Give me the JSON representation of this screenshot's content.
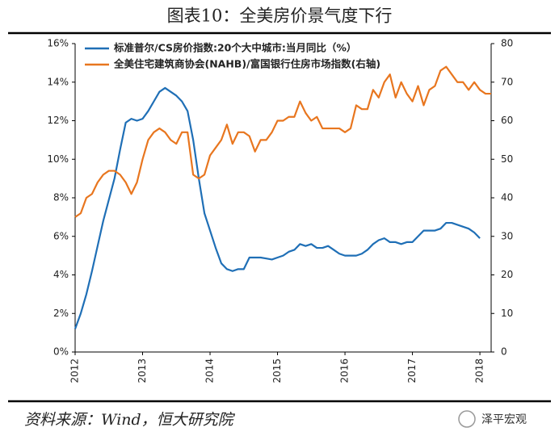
{
  "chart_data": {
    "type": "line",
    "title": "图表10：全美房价景气度下行",
    "source": "资料来源：Wind，恒大研究院",
    "watermark": "泽平宏观",
    "x": [
      "2012-01",
      "2012-02",
      "2012-03",
      "2012-04",
      "2012-05",
      "2012-06",
      "2012-07",
      "2012-08",
      "2012-09",
      "2012-10",
      "2012-11",
      "2012-12",
      "2013-01",
      "2013-02",
      "2013-03",
      "2013-04",
      "2013-05",
      "2013-06",
      "2013-07",
      "2013-08",
      "2013-09",
      "2013-10",
      "2013-11",
      "2013-12",
      "2014-01",
      "2014-02",
      "2014-03",
      "2014-04",
      "2014-05",
      "2014-06",
      "2014-07",
      "2014-08",
      "2014-09",
      "2014-10",
      "2014-11",
      "2014-12",
      "2015-01",
      "2015-02",
      "2015-03",
      "2015-04",
      "2015-05",
      "2015-06",
      "2015-07",
      "2015-08",
      "2015-09",
      "2015-10",
      "2015-11",
      "2015-12",
      "2016-01",
      "2016-02",
      "2016-03",
      "2016-04",
      "2016-05",
      "2016-06",
      "2016-07",
      "2016-08",
      "2016-09",
      "2016-10",
      "2016-11",
      "2016-12",
      "2017-01",
      "2017-02",
      "2017-03",
      "2017-04",
      "2017-05",
      "2017-06",
      "2017-07",
      "2017-08",
      "2017-09",
      "2017-10",
      "2017-11",
      "2017-12",
      "2018-01",
      "2018-02",
      "2018-03"
    ],
    "xlim": [
      "2012-01",
      "2018-03"
    ],
    "xticks": [
      "2012",
      "2013",
      "2014",
      "2015",
      "2016",
      "2017",
      "2018"
    ],
    "series": [
      {
        "name": "标准普尔/CS房价指数:20个大中城市:当月同比（%）",
        "color": "#1f6fb6",
        "values": [
          1.2,
          2.0,
          3.0,
          4.2,
          5.5,
          6.8,
          7.9,
          9.0,
          10.5,
          11.9,
          12.1,
          12.0,
          12.1,
          12.5,
          13.0,
          13.5,
          13.7,
          13.5,
          13.3,
          13.0,
          12.5,
          11.0,
          9.0,
          7.2,
          6.3,
          5.4,
          4.6,
          4.3,
          4.2,
          4.3,
          4.3,
          4.9,
          4.9,
          4.9,
          4.85,
          4.8,
          4.9,
          5.0,
          5.2,
          5.3,
          5.6,
          5.5,
          5.6,
          5.4,
          5.4,
          5.5,
          5.3,
          5.1,
          5.0,
          5.0,
          5.0,
          5.1,
          5.3,
          5.6,
          5.8,
          5.9,
          5.7,
          5.7,
          5.6,
          5.7,
          5.7,
          6.0,
          6.3,
          6.3,
          6.3,
          6.4,
          6.7,
          6.7,
          6.6,
          6.5,
          6.4,
          6.2,
          5.9,
          null,
          null
        ]
      },
      {
        "name": "全美住宅建筑商协会(NAHB)/富国银行住房市场指数(右轴)",
        "color": "#e8761f",
        "axis": "y2",
        "values": [
          35,
          36,
          40,
          41,
          44,
          46,
          47,
          47,
          46,
          44,
          41,
          44,
          50,
          55,
          57,
          58,
          57,
          55,
          54,
          57,
          57,
          46,
          45,
          46,
          51,
          53,
          55,
          59,
          54,
          57,
          57,
          56,
          52,
          55,
          55,
          57,
          60,
          60,
          61,
          61,
          65,
          62,
          60,
          61,
          58,
          58,
          58,
          58,
          57,
          58,
          64,
          63,
          63,
          68,
          66,
          70,
          72,
          66,
          70,
          67,
          65,
          69,
          64,
          68,
          69,
          73,
          74,
          72,
          70,
          70,
          68,
          70,
          68,
          67,
          67
        ]
      }
    ],
    "ylim": [
      0,
      16
    ],
    "yticks": [
      {
        "value": 0,
        "label": "0%"
      },
      {
        "value": 2,
        "label": "2%"
      },
      {
        "value": 4,
        "label": "4%"
      },
      {
        "value": 6,
        "label": "6%"
      },
      {
        "value": 8,
        "label": "8%"
      },
      {
        "value": 10,
        "label": "10%"
      },
      {
        "value": 12,
        "label": "12%"
      },
      {
        "value": 14,
        "label": "14%"
      },
      {
        "value": 16,
        "label": "16%"
      }
    ],
    "y2lim": [
      0,
      80
    ],
    "y2ticks": [
      0,
      10,
      20,
      30,
      40,
      50,
      60,
      70,
      80
    ],
    "grid": false,
    "legend": "top-left"
  }
}
